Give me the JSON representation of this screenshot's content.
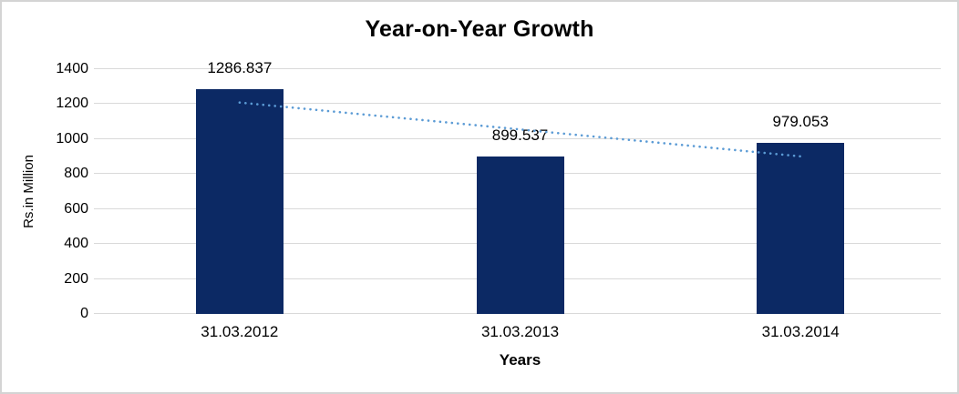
{
  "chart_data": {
    "type": "bar",
    "title": "Year-on-Year Growth",
    "xlabel": "Years",
    "ylabel": "Rs.in Million",
    "categories": [
      "31.03.2012",
      "31.03.2013",
      "31.03.2014"
    ],
    "values": [
      1286.837,
      899.537,
      979.053
    ],
    "data_labels": [
      "1286.837",
      "899.537",
      "979.053"
    ],
    "ylim": [
      0,
      1400
    ],
    "yticks": [
      0,
      200,
      400,
      600,
      800,
      1000,
      1200,
      1400
    ],
    "grid": true,
    "legend": false,
    "bar_color": "#0c2964",
    "gridline_color": "#d9d9d9",
    "text_color": "#000000",
    "trendline": {
      "type": "linear",
      "style": "dotted",
      "color": "#5b9bd5",
      "start_value": 1209.0,
      "end_value": 901.3
    }
  }
}
